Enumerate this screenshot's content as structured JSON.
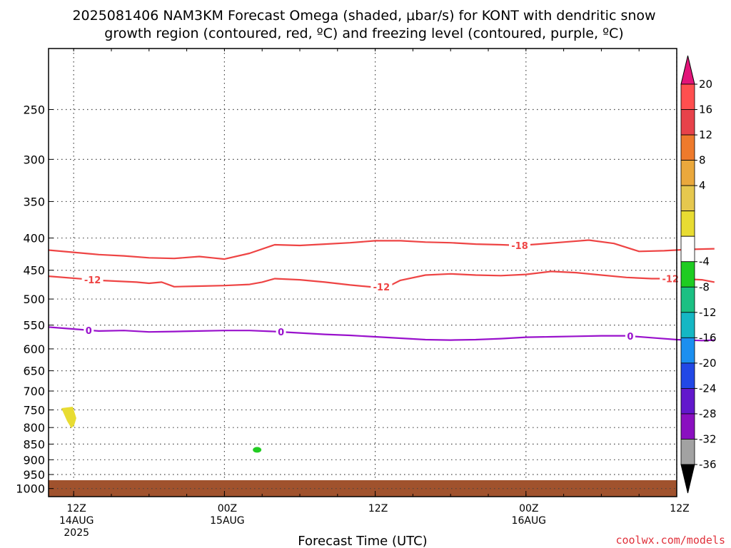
{
  "header": {
    "title_line1": "2025081406 NAM3KM Forecast Omega (shaded, μbar/s) for KONT with dendritic snow",
    "title_line2": "growth region (contoured, red, ºC) and freezing level (contoured, purple, ºC)"
  },
  "footer": {
    "credit": "coolwx.com/models"
  },
  "colors": {
    "red_contour": "#ee4444",
    "purple_contour": "#9911cc",
    "ground": "#a0522d",
    "gridline": "#444444"
  },
  "chart_data": {
    "type": "time-height cross section",
    "xlabel": "Forecast Time (UTC)",
    "ylabel": "",
    "x_range_hours": [
      -2,
      48
    ],
    "x_ticks": [
      {
        "hour": 0,
        "lines": [
          "12Z",
          "14AUG",
          "2025"
        ]
      },
      {
        "hour": 12,
        "lines": [
          "00Z",
          "15AUG"
        ]
      },
      {
        "hour": 24,
        "lines": [
          "12Z"
        ]
      },
      {
        "hour": 36,
        "lines": [
          "00Z",
          "16AUG"
        ]
      },
      {
        "hour": 48,
        "lines": [
          "12Z"
        ]
      }
    ],
    "y_scale": "log pressure (hPa)",
    "y_range_hpa": [
      200,
      1030
    ],
    "y_ticks": [
      250,
      300,
      350,
      400,
      450,
      500,
      550,
      600,
      650,
      700,
      750,
      800,
      850,
      900,
      950,
      1000
    ],
    "grid": true,
    "ground_top_hpa": 970,
    "contours": [
      {
        "label": "-18",
        "color": "#ee4444",
        "label_hours": [
          35.5
        ],
        "points": [
          [
            -2,
            418
          ],
          [
            2,
            425
          ],
          [
            4,
            427
          ],
          [
            6,
            430
          ],
          [
            8,
            431
          ],
          [
            10,
            428
          ],
          [
            11,
            430
          ],
          [
            12,
            432
          ],
          [
            14,
            423
          ],
          [
            16,
            410
          ],
          [
            18,
            411
          ],
          [
            20,
            409
          ],
          [
            22,
            407
          ],
          [
            24,
            404
          ],
          [
            26,
            404
          ],
          [
            28,
            406
          ],
          [
            30,
            407
          ],
          [
            32,
            409
          ],
          [
            34,
            410
          ],
          [
            35.5,
            411
          ],
          [
            37,
            409
          ],
          [
            39,
            406
          ],
          [
            41,
            403
          ],
          [
            43,
            408
          ],
          [
            45,
            420
          ],
          [
            47,
            419
          ],
          [
            49,
            417
          ],
          [
            51,
            416
          ]
        ]
      },
      {
        "label": "-12",
        "color": "#ee4444",
        "label_hours": [
          1.5,
          24.5,
          47.5
        ],
        "points": [
          [
            -2,
            460
          ],
          [
            1,
            465
          ],
          [
            2,
            467
          ],
          [
            5,
            470
          ],
          [
            6,
            472
          ],
          [
            7,
            470
          ],
          [
            8,
            478
          ],
          [
            10,
            477
          ],
          [
            12,
            476
          ],
          [
            14,
            474
          ],
          [
            15,
            470
          ],
          [
            16,
            464
          ],
          [
            18,
            466
          ],
          [
            20,
            470
          ],
          [
            22,
            475
          ],
          [
            24,
            479
          ],
          [
            25,
            478
          ],
          [
            26,
            467
          ],
          [
            28,
            458
          ],
          [
            30,
            456
          ],
          [
            32,
            458
          ],
          [
            34,
            459
          ],
          [
            36,
            457
          ],
          [
            38,
            452
          ],
          [
            40,
            454
          ],
          [
            42,
            458
          ],
          [
            44,
            462
          ],
          [
            46,
            464
          ],
          [
            48,
            464
          ],
          [
            50,
            466
          ],
          [
            51,
            470
          ]
        ]
      },
      {
        "label": "0",
        "color": "#9911cc",
        "label_hours": [
          1.2,
          16.5,
          44.3
        ],
        "points": [
          [
            -2,
            554
          ],
          [
            1,
            560
          ],
          [
            2,
            562
          ],
          [
            4,
            561
          ],
          [
            6,
            564
          ],
          [
            8,
            563
          ],
          [
            10,
            562
          ],
          [
            12,
            561
          ],
          [
            14,
            561
          ],
          [
            16,
            563
          ],
          [
            18,
            566
          ],
          [
            20,
            569
          ],
          [
            22,
            571
          ],
          [
            24,
            574
          ],
          [
            26,
            577
          ],
          [
            28,
            580
          ],
          [
            30,
            581
          ],
          [
            32,
            580
          ],
          [
            34,
            578
          ],
          [
            36,
            575
          ],
          [
            38,
            574
          ],
          [
            40,
            573
          ],
          [
            42,
            572
          ],
          [
            44,
            572
          ],
          [
            46,
            576
          ],
          [
            48,
            580
          ],
          [
            50,
            582
          ],
          [
            51,
            581
          ]
        ]
      }
    ],
    "omega_blobs": [
      {
        "value_range": "4 to 8",
        "color": "#e8dc32",
        "hour": -0.3,
        "hpa": 765
      },
      {
        "value_range": "-8 to -4",
        "color": "#22cc22",
        "hour": 14.6,
        "hpa": 868
      }
    ],
    "colorbar": {
      "label_levels": [
        "20",
        "16",
        "12",
        "8",
        "4",
        "-4",
        "-8",
        "-12",
        "-16",
        "-20",
        "-24",
        "-28",
        "-32",
        "-36"
      ],
      "colors": [
        "#ff4f4f",
        "#e7424a",
        "#ee7a2c",
        "#eaa83c",
        "#e6c84e",
        "#e8dc32",
        "#ffffff",
        "#1fcc22",
        "#1bc083",
        "#15b7c4",
        "#1b8ff0",
        "#2248e6",
        "#6218cc",
        "#8a10c0",
        "#a2a2a2"
      ],
      "top_arrow_color": "#e21479",
      "bottom_arrow_color": "#000000"
    }
  }
}
